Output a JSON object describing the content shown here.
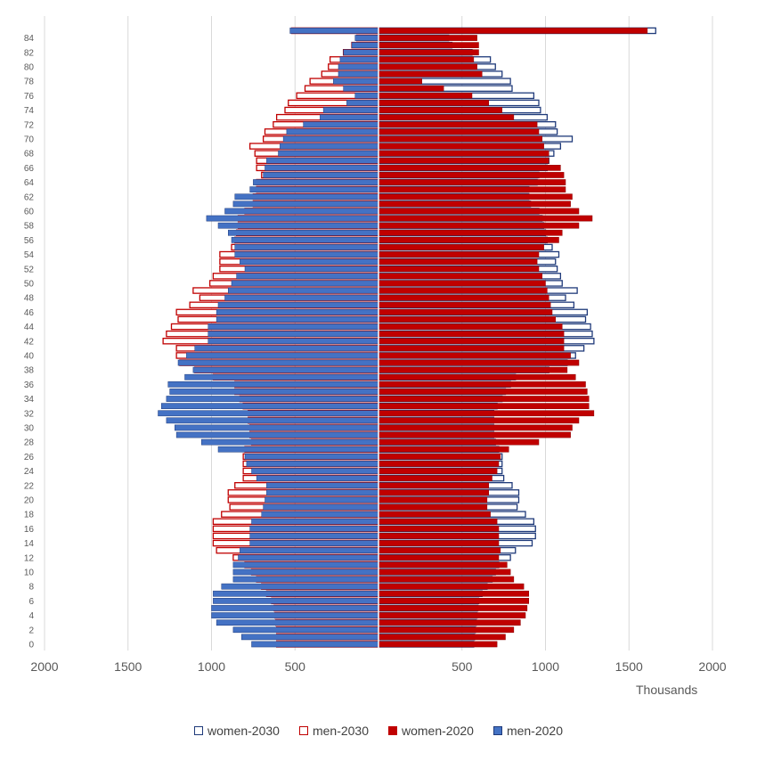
{
  "chart_data": {
    "type": "bar",
    "orientation": "horizontal",
    "layout": "population-pyramid",
    "xlabel": "Thousands",
    "x_ticks_left": [
      2000,
      1500,
      1000,
      500
    ],
    "x_ticks_right": [
      500,
      1000,
      1500,
      2000
    ],
    "xlim": [
      -2000,
      2000
    ],
    "y_ticks": [
      0,
      2,
      4,
      6,
      8,
      10,
      12,
      14,
      16,
      18,
      20,
      22,
      24,
      26,
      28,
      30,
      32,
      34,
      36,
      38,
      40,
      42,
      44,
      46,
      48,
      50,
      52,
      54,
      56,
      58,
      60,
      62,
      64,
      66,
      68,
      70,
      72,
      74,
      76,
      78,
      80,
      82,
      84
    ],
    "ages": [
      0,
      1,
      2,
      3,
      4,
      5,
      6,
      7,
      8,
      9,
      10,
      11,
      12,
      13,
      14,
      15,
      16,
      17,
      18,
      19,
      20,
      21,
      22,
      23,
      24,
      25,
      26,
      27,
      28,
      29,
      30,
      31,
      32,
      33,
      34,
      35,
      36,
      37,
      38,
      39,
      40,
      41,
      42,
      43,
      44,
      45,
      46,
      47,
      48,
      49,
      50,
      51,
      52,
      53,
      54,
      55,
      56,
      57,
      58,
      59,
      60,
      61,
      62,
      63,
      64,
      65,
      66,
      67,
      68,
      69,
      70,
      71,
      72,
      73,
      74,
      75,
      76,
      77,
      78,
      79,
      80,
      81,
      82,
      83,
      84,
      85
    ],
    "legend_position": "bottom",
    "grid": "vertical",
    "series": [
      {
        "name": "women-2030",
        "side": "right",
        "style": "outline",
        "color": "#1f3a7a",
        "values": [
          570,
          575,
          580,
          585,
          590,
          595,
          600,
          620,
          650,
          680,
          700,
          720,
          790,
          820,
          920,
          940,
          940,
          930,
          880,
          830,
          840,
          840,
          800,
          750,
          740,
          740,
          740,
          720,
          700,
          690,
          690,
          690,
          690,
          710,
          740,
          760,
          790,
          820,
          1020,
          1130,
          1180,
          1230,
          1290,
          1280,
          1270,
          1240,
          1250,
          1170,
          1120,
          1190,
          1100,
          1090,
          1070,
          1060,
          1080,
          1040,
          1010,
          1000,
          990,
          980,
          960,
          910,
          900,
          900,
          950,
          960,
          1010,
          1020,
          1050,
          1090,
          1160,
          1070,
          1060,
          1010,
          970,
          960,
          930,
          800,
          790,
          740,
          700,
          670,
          560,
          440,
          420,
          1660
        ]
      },
      {
        "name": "men-2030",
        "side": "left",
        "style": "outline",
        "color": "#c00000",
        "values": [
          610,
          610,
          610,
          615,
          620,
          625,
          640,
          670,
          700,
          730,
          760,
          800,
          870,
          970,
          990,
          990,
          990,
          990,
          940,
          890,
          900,
          900,
          860,
          810,
          810,
          810,
          810,
          800,
          760,
          770,
          770,
          780,
          780,
          810,
          830,
          860,
          860,
          990,
          1100,
          1190,
          1210,
          1210,
          1290,
          1270,
          1240,
          1200,
          1210,
          1130,
          1070,
          1110,
          1010,
          990,
          950,
          950,
          950,
          880,
          860,
          850,
          840,
          840,
          800,
          750,
          750,
          730,
          730,
          700,
          730,
          730,
          740,
          770,
          690,
          680,
          630,
          610,
          560,
          540,
          490,
          440,
          410,
          340,
          300,
          290,
          210,
          160,
          130,
          520
        ]
      },
      {
        "name": "women-2020",
        "side": "right",
        "style": "solid",
        "color": "#c00000",
        "values": [
          710,
          760,
          810,
          850,
          880,
          890,
          900,
          900,
          870,
          810,
          790,
          770,
          720,
          730,
          720,
          720,
          720,
          710,
          670,
          650,
          650,
          660,
          660,
          680,
          710,
          720,
          730,
          780,
          960,
          1150,
          1160,
          1200,
          1290,
          1260,
          1260,
          1250,
          1240,
          1180,
          1130,
          1200,
          1150,
          1110,
          1110,
          1110,
          1100,
          1060,
          1040,
          1030,
          1020,
          1010,
          1000,
          980,
          960,
          950,
          960,
          990,
          1080,
          1100,
          1200,
          1280,
          1200,
          1150,
          1160,
          1120,
          1120,
          1110,
          1090,
          1020,
          1020,
          990,
          980,
          960,
          950,
          810,
          740,
          660,
          560,
          390,
          260,
          620,
          590,
          570,
          600,
          600,
          590,
          1610
        ]
      },
      {
        "name": "men-2020",
        "side": "left",
        "style": "solid",
        "color": "#4472c4",
        "values": [
          760,
          820,
          870,
          970,
          1000,
          1000,
          990,
          990,
          940,
          870,
          870,
          870,
          840,
          830,
          770,
          770,
          770,
          760,
          700,
          690,
          680,
          670,
          670,
          730,
          760,
          790,
          800,
          960,
          1060,
          1210,
          1220,
          1270,
          1320,
          1300,
          1270,
          1250,
          1260,
          1160,
          1110,
          1200,
          1150,
          1100,
          1020,
          1020,
          1020,
          970,
          970,
          960,
          920,
          900,
          880,
          850,
          800,
          830,
          860,
          860,
          880,
          900,
          960,
          1030,
          920,
          870,
          860,
          770,
          750,
          690,
          680,
          670,
          600,
          590,
          570,
          550,
          450,
          350,
          330,
          190,
          140,
          210,
          270,
          240,
          240,
          230,
          210,
          160,
          140,
          530
        ]
      }
    ]
  }
}
